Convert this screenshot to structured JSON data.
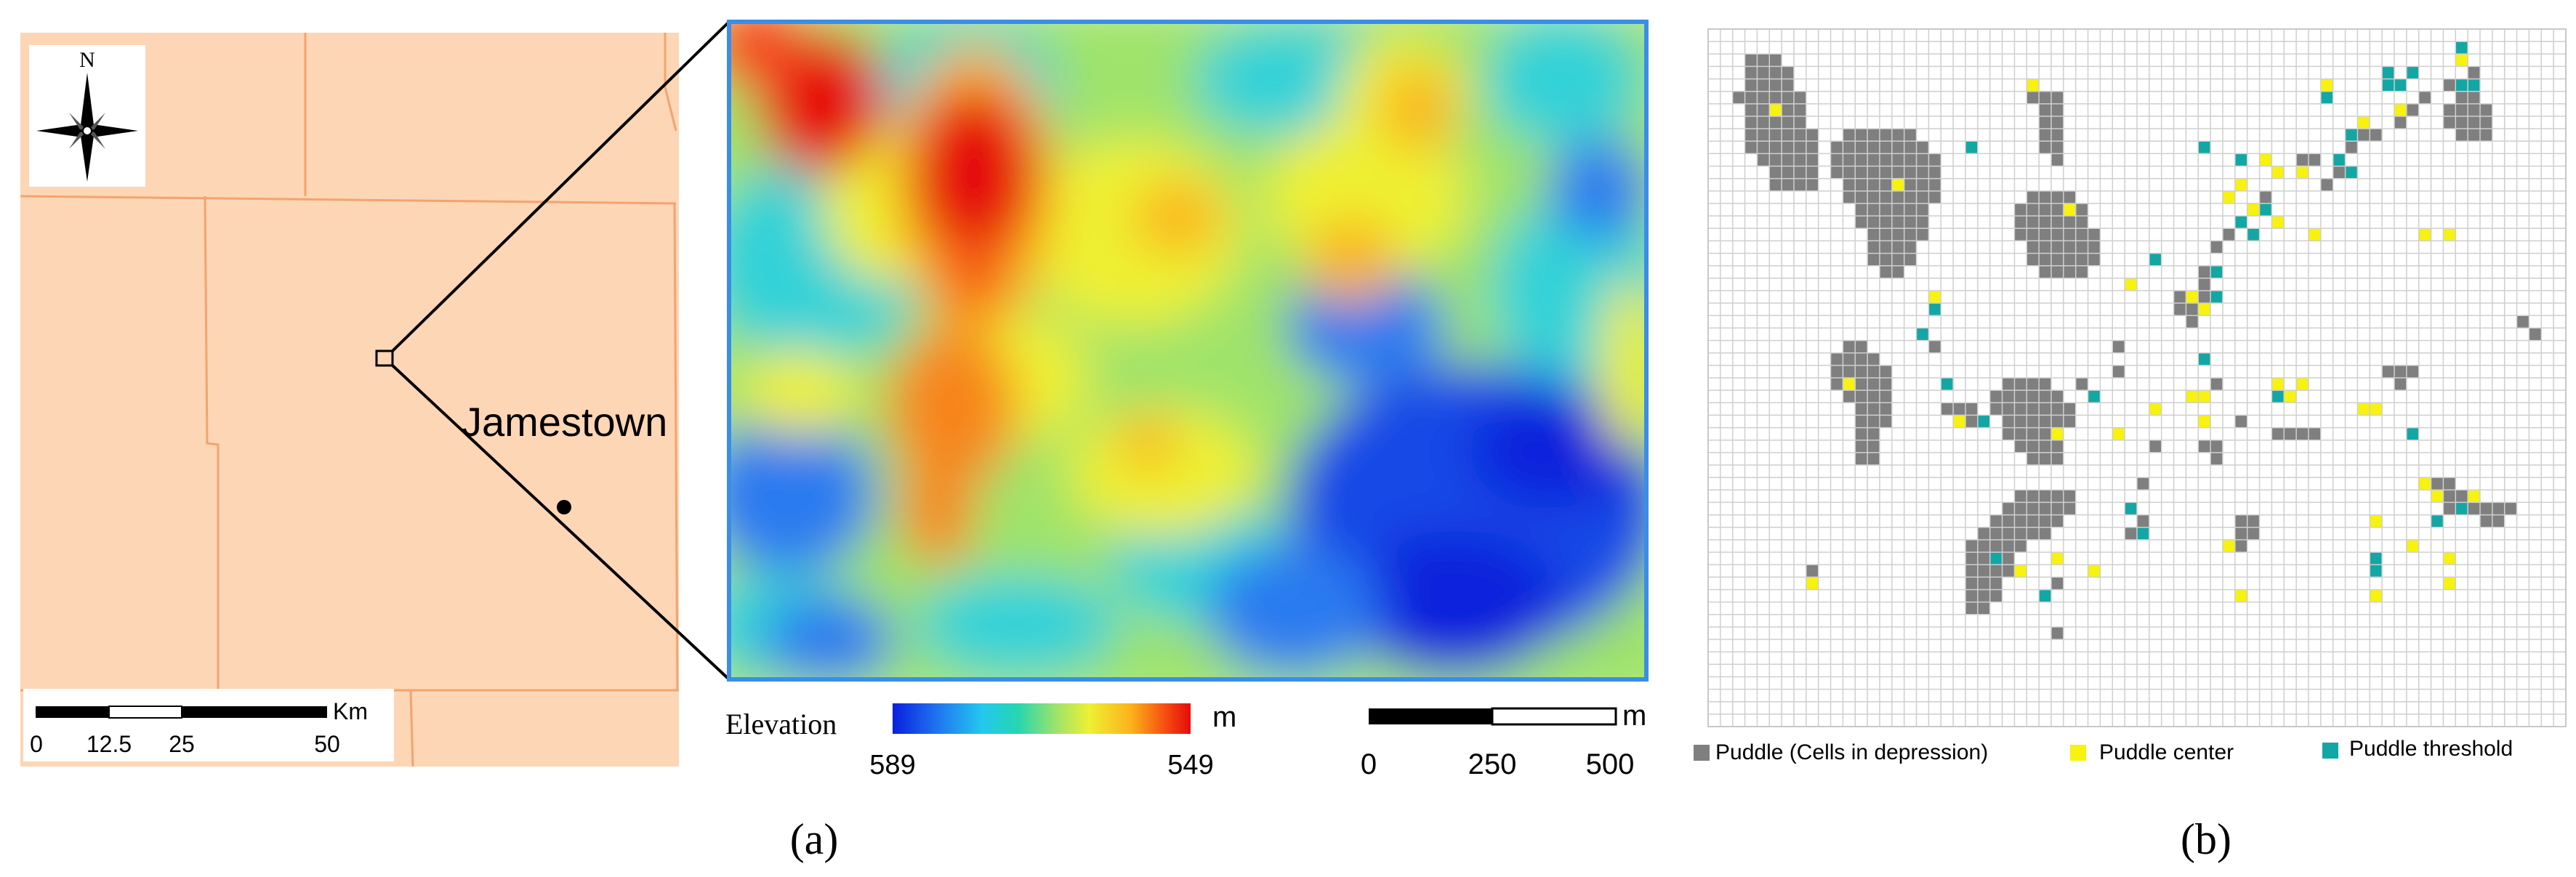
{
  "left_map": {
    "north_label": "N",
    "city_label": "Jamestown",
    "scale_unit": "Km",
    "scale_ticks": [
      "0",
      "12.5",
      "25",
      "50"
    ],
    "colors": {
      "land": "#fdd6b6",
      "county_lines": "#f2a46e"
    }
  },
  "elevation_panel": {
    "legend_title": "Elevation",
    "legend_unit": "m",
    "legend_min": "589",
    "legend_max": "549",
    "scale_unit": "m",
    "scale_ticks": [
      "0",
      "250",
      "500"
    ],
    "frame_color": "#3a8ee6",
    "ramp": [
      "#0a1fe0",
      "#1f6ff0",
      "#23c8ee",
      "#25d6b0",
      "#9fe36b",
      "#eef033",
      "#fbb21a",
      "#f75a12",
      "#e50b0b"
    ]
  },
  "puddle_panel": {
    "legend": [
      {
        "label": "Puddle (Cells in depression)",
        "color": "#7f7f7f"
      },
      {
        "label": "Puddle center",
        "color": "#f7f20e"
      },
      {
        "label": "Puddle threshold",
        "color": "#12a7a4"
      }
    ]
  },
  "captions": {
    "a": "(a)",
    "b": "(b)"
  }
}
